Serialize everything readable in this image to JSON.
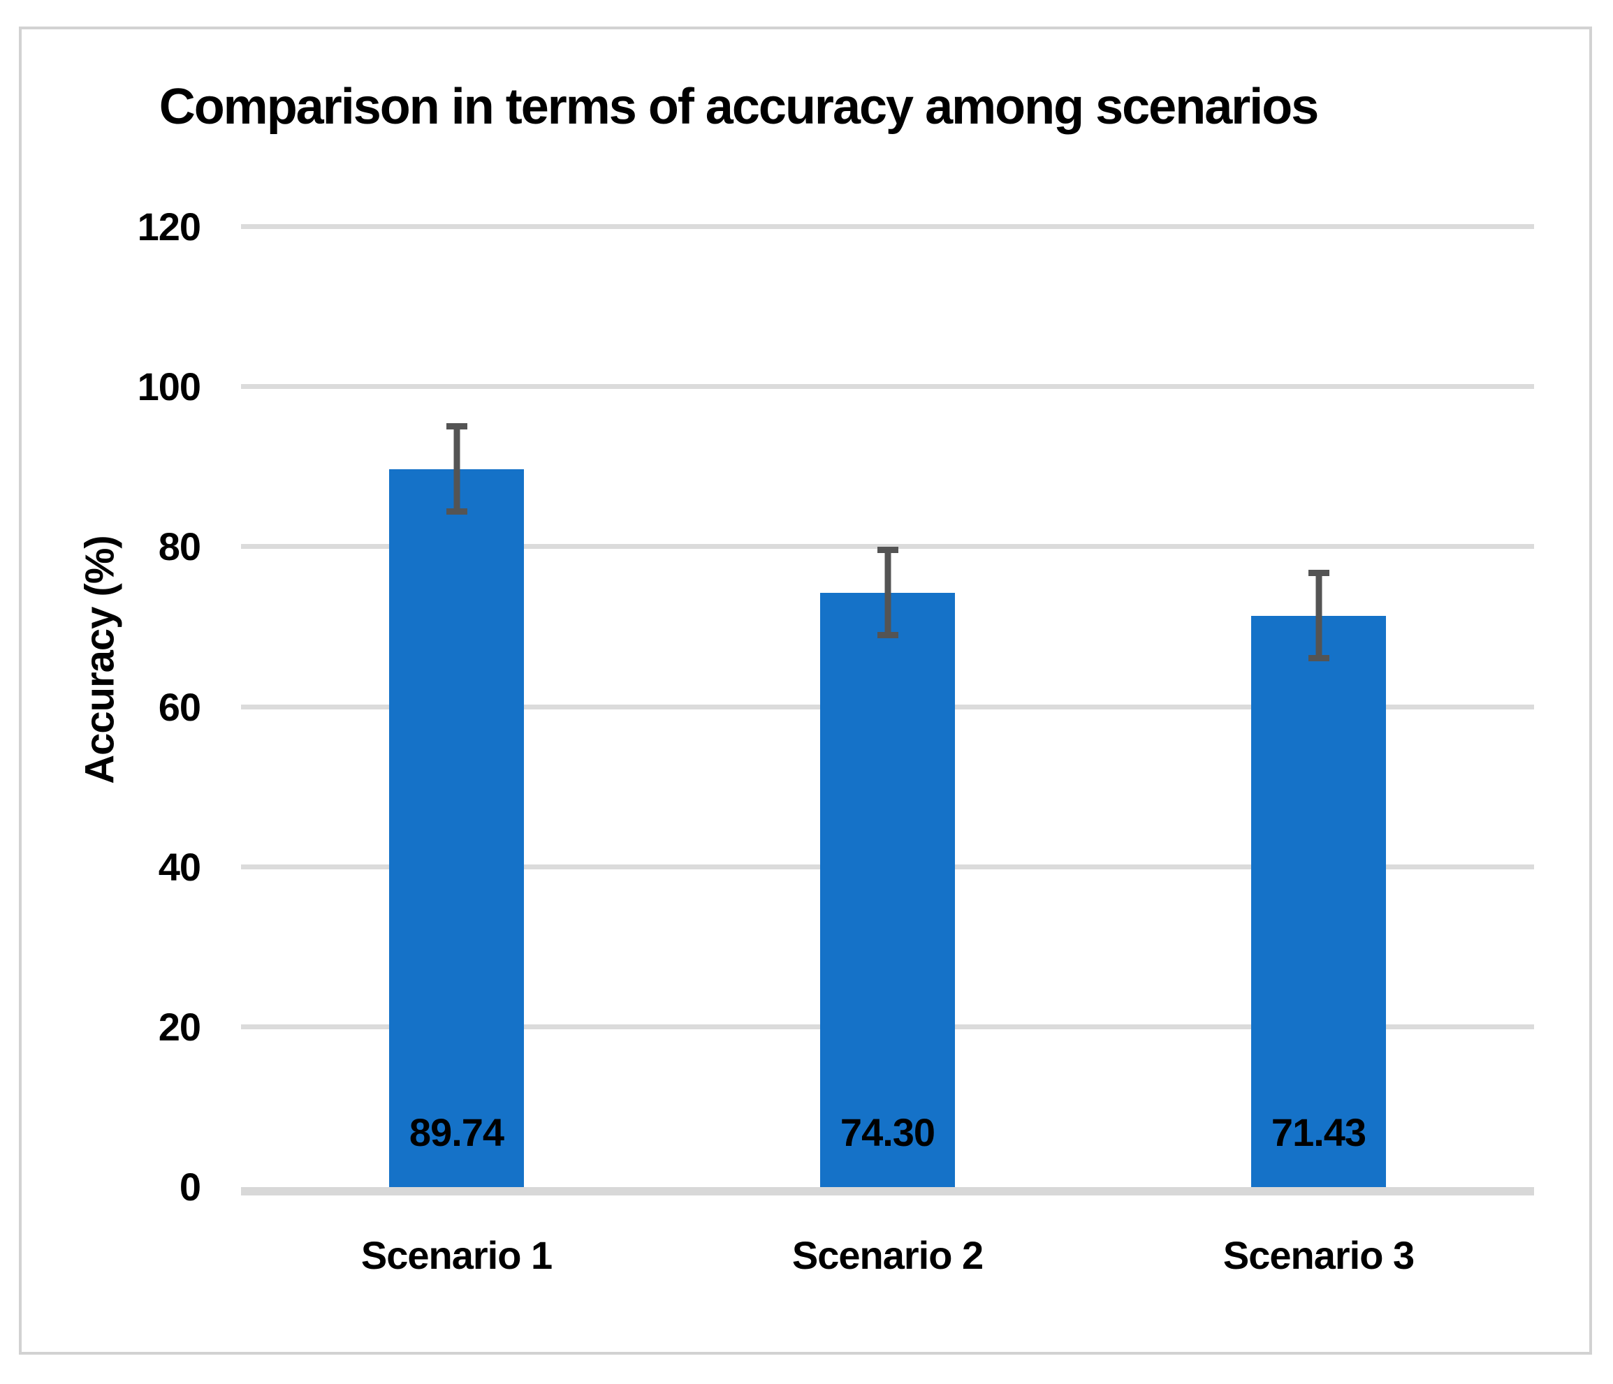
{
  "chart_data": {
    "type": "bar",
    "title": "Comparison in terms of accuracy among scenarios",
    "xlabel": "",
    "ylabel": "Accuracy (%)",
    "categories": [
      "Scenario 1",
      "Scenario 2",
      "Scenario 3"
    ],
    "values": [
      89.74,
      74.3,
      71.43
    ],
    "data_labels": [
      "89.74",
      "74.30",
      "71.43"
    ],
    "error_bars_plus_minus": [
      5.7,
      5.7,
      5.7
    ],
    "ylim": [
      0,
      120
    ],
    "yticks": [
      0,
      20,
      40,
      60,
      80,
      100,
      120
    ],
    "grid": "horizontal",
    "legend": false,
    "data_label_position": "inside-base",
    "colors": {
      "bar": "#1572c8",
      "error_bar": "#545454",
      "gridline": "#dbdbdb",
      "axis_line": "#d8d8d8",
      "frame_border": "#d2d2d2",
      "text": "#000000",
      "background": "#ffffff"
    }
  }
}
